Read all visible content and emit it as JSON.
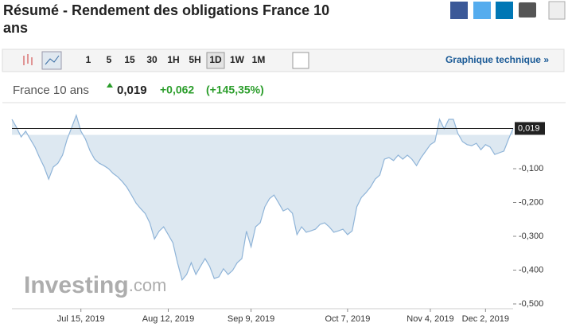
{
  "header": {
    "title_line1": "Résumé - Rendement des obligations France 10",
    "title_line2": "ans"
  },
  "toolbar": {
    "buttons": [
      "1",
      "5",
      "15",
      "30",
      "1H",
      "5H",
      "1D",
      "1W",
      "1M"
    ],
    "selected": "1D",
    "technical": "Graphique technique »"
  },
  "quote": {
    "name": "France 10 ans",
    "price": "0,019",
    "change": "+0,062",
    "change_pct": "(+145,35%)"
  },
  "watermark": {
    "brand": "Investing",
    "suffix": ".com"
  },
  "chart_data": {
    "type": "area",
    "color": "#8fb4d8",
    "fill": "#dde8f1",
    "values": [
      0.046,
      0.022,
      -0.006,
      0.011,
      -0.013,
      -0.036,
      -0.067,
      -0.095,
      -0.131,
      -0.095,
      -0.084,
      -0.06,
      -0.013,
      0.022,
      0.058,
      0.011,
      -0.013,
      -0.048,
      -0.072,
      -0.084,
      -0.091,
      -0.1,
      -0.114,
      -0.124,
      -0.138,
      -0.155,
      -0.178,
      -0.202,
      -0.218,
      -0.233,
      -0.261,
      -0.308,
      -0.285,
      -0.272,
      -0.295,
      -0.319,
      -0.378,
      -0.429,
      -0.413,
      -0.378,
      -0.413,
      -0.389,
      -0.366,
      -0.389,
      -0.425,
      -0.42,
      -0.396,
      -0.413,
      -0.401,
      -0.378,
      -0.366,
      -0.285,
      -0.331,
      -0.272,
      -0.26,
      -0.213,
      -0.189,
      -0.178,
      -0.201,
      -0.225,
      -0.218,
      -0.232,
      -0.295,
      -0.272,
      -0.288,
      -0.284,
      -0.279,
      -0.265,
      -0.26,
      -0.272,
      -0.288,
      -0.284,
      -0.279,
      -0.295,
      -0.284,
      -0.213,
      -0.185,
      -0.171,
      -0.154,
      -0.131,
      -0.119,
      -0.072,
      -0.067,
      -0.076,
      -0.06,
      -0.072,
      -0.06,
      -0.072,
      -0.091,
      -0.067,
      -0.048,
      -0.029,
      -0.02,
      0.046,
      0.018,
      0.046,
      0.046,
      0.004,
      -0.02,
      -0.029,
      -0.032,
      -0.025,
      -0.044,
      -0.029,
      -0.036,
      -0.058,
      -0.053,
      -0.048,
      -0.013,
      0.019
    ],
    "xlim": [
      0,
      109
    ],
    "xticks": [
      {
        "value": 15,
        "label": "Jul 15, 2019"
      },
      {
        "value": 34,
        "label": "Aug 12, 2019"
      },
      {
        "value": 52,
        "label": "Sep 9, 2019"
      },
      {
        "value": 73,
        "label": "Oct 7, 2019"
      },
      {
        "value": 91,
        "label": "Nov 4, 2019"
      },
      {
        "value": 103,
        "label": "Dec 2, 2019"
      }
    ],
    "ylim": [
      -0.5,
      0.093
    ],
    "yticks": [
      {
        "value": -0.1,
        "label": "-0,100"
      },
      {
        "value": -0.2,
        "label": "-0,200"
      },
      {
        "value": -0.3,
        "label": "-0,300"
      },
      {
        "value": -0.4,
        "label": "-0,400"
      },
      {
        "value": -0.5,
        "label": "-0,500"
      }
    ],
    "reference_line": {
      "value": 0.019,
      "label": "0,019"
    }
  }
}
